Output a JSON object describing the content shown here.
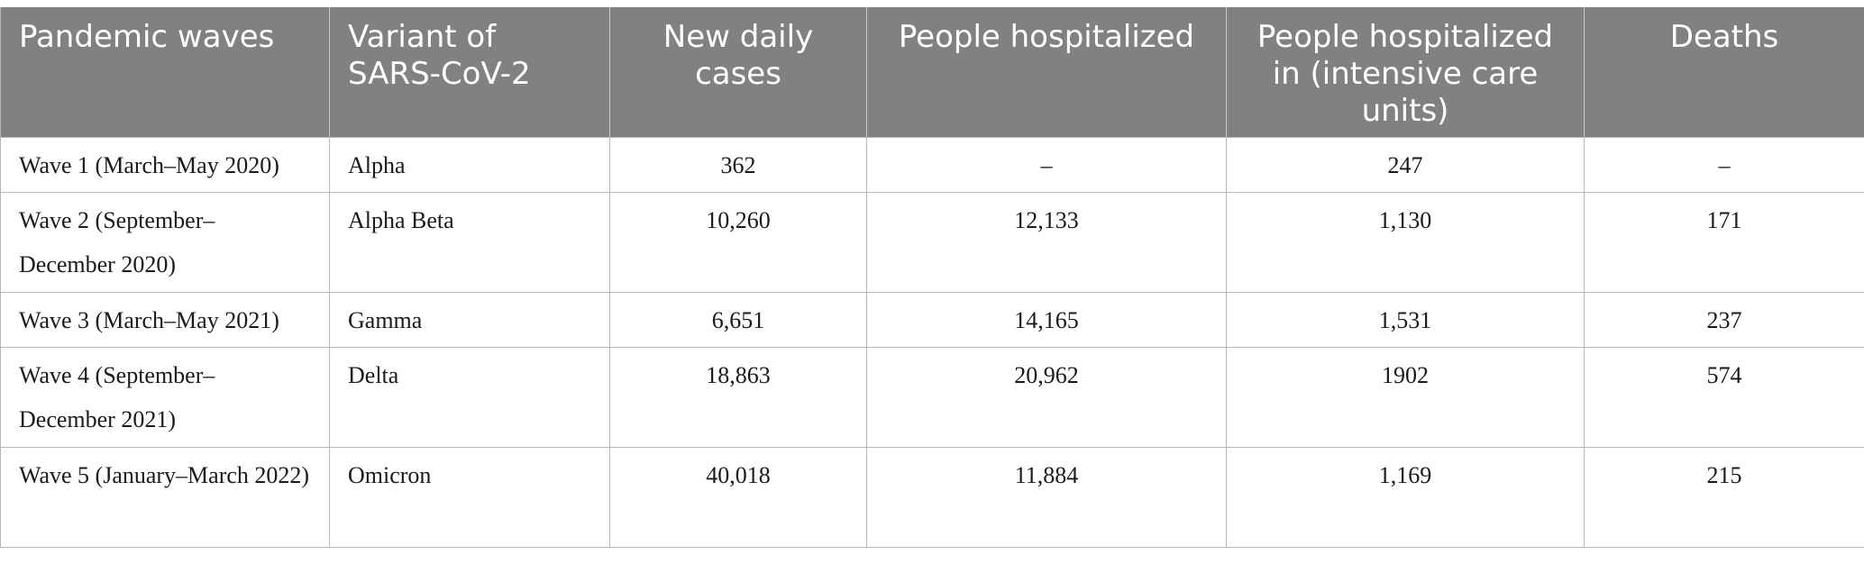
{
  "table": {
    "headers": [
      "Pandemic waves",
      "Variant of SARS-CoV-2",
      "New daily cases",
      "People hospitalized",
      "People hospitalized in (intensive care units)",
      "Deaths"
    ],
    "rows": [
      [
        "Wave 1 (March–May 2020)",
        "Alpha",
        "362",
        "–",
        "247",
        "–"
      ],
      [
        "Wave 2 (September–December 2020)",
        "Alpha Beta",
        "10,260",
        "12,133",
        "1,130",
        "171"
      ],
      [
        "Wave 3 (March–May 2021)",
        "Gamma",
        "6,651",
        "14,165",
        "1,531",
        "237"
      ],
      [
        "Wave 4 (September–December 2021)",
        "Delta",
        "18,863",
        "20,962",
        "1902",
        "574"
      ],
      [
        "Wave 5 (January–March 2022)",
        "Omicron",
        "40,018",
        "11,884",
        "1,169",
        "215"
      ]
    ]
  }
}
